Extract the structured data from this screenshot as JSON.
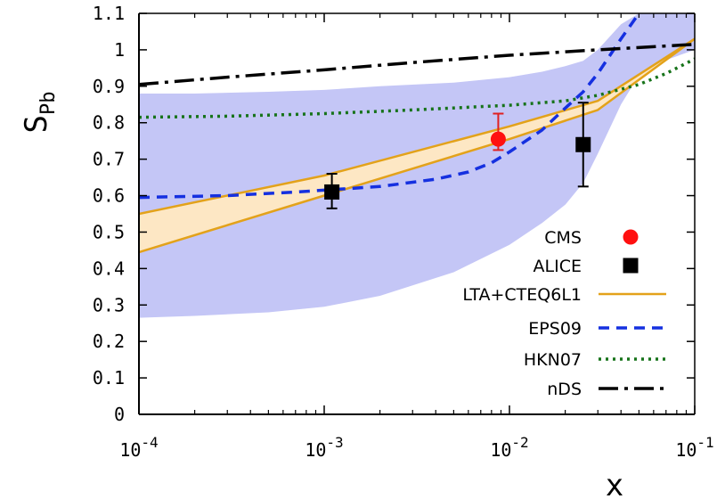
{
  "chart_data": {
    "type": "line",
    "title": "",
    "xlabel": "x",
    "ylabel": "S",
    "ylabel_subscript": "Pb",
    "x_scale": "log",
    "xlim": [
      0.0001,
      0.1
    ],
    "ylim": [
      0,
      1.1
    ],
    "x_ticks": [
      {
        "value": 0.0001,
        "base": "10",
        "exp": "-4"
      },
      {
        "value": 0.001,
        "base": "10",
        "exp": "-3"
      },
      {
        "value": 0.01,
        "base": "10",
        "exp": "-2"
      },
      {
        "value": 0.1,
        "base": "10",
        "exp": "-1"
      }
    ],
    "y_ticks": [
      {
        "value": 0,
        "label": "0"
      },
      {
        "value": 0.1,
        "label": "0.1"
      },
      {
        "value": 0.2,
        "label": "0.2"
      },
      {
        "value": 0.3,
        "label": "0.3"
      },
      {
        "value": 0.4,
        "label": "0.4"
      },
      {
        "value": 0.5,
        "label": "0.5"
      },
      {
        "value": 0.6,
        "label": "0.6"
      },
      {
        "value": 0.7,
        "label": "0.7"
      },
      {
        "value": 0.8,
        "label": "0.8"
      },
      {
        "value": 0.9,
        "label": "0.9"
      },
      {
        "value": 1,
        "label": "1"
      },
      {
        "value": 1.1,
        "label": "1.1"
      }
    ],
    "grid": false,
    "legend_position": "bottom-right",
    "bands": [
      {
        "name": "EPS09",
        "color": "#c4c6f6",
        "x": [
          0.0001,
          0.0002,
          0.0005,
          0.001,
          0.002,
          0.005,
          0.01,
          0.015,
          0.02,
          0.025,
          0.03,
          0.04,
          0.05,
          0.06,
          0.1
        ],
        "lower": [
          0.265,
          0.27,
          0.28,
          0.295,
          0.325,
          0.39,
          0.465,
          0.525,
          0.575,
          0.635,
          0.715,
          0.85,
          0.93,
          0.96,
          1.0
        ],
        "upper": [
          0.88,
          0.88,
          0.885,
          0.89,
          0.9,
          0.91,
          0.925,
          0.94,
          0.955,
          0.97,
          1.0,
          1.07,
          1.1,
          1.1,
          1.1
        ]
      },
      {
        "name": "LTA+CTEQ6L1",
        "color": "#fde7c4",
        "x": [
          0.0001,
          0.001,
          0.01,
          0.03,
          0.1
        ],
        "lower": [
          0.445,
          0.6,
          0.755,
          0.835,
          1.03
        ],
        "upper": [
          0.55,
          0.655,
          0.79,
          0.86,
          1.03
        ]
      }
    ],
    "series": [
      {
        "name": "LTA+CTEQ6L1",
        "kind": "line",
        "color": "#e3a21a",
        "dash": "",
        "width": 2.5,
        "x": [
          0.0001,
          0.001,
          0.01,
          0.03,
          0.1
        ],
        "y": [
          0.445,
          0.6,
          0.755,
          0.835,
          1.03
        ]
      },
      {
        "name": "",
        "kind": "line",
        "color": "#e3a21a",
        "dash": "",
        "width": 2.5,
        "x": [
          0.0001,
          0.001,
          0.01,
          0.03,
          0.1
        ],
        "y": [
          0.55,
          0.655,
          0.79,
          0.86,
          1.03
        ]
      },
      {
        "name": "EPS09",
        "kind": "line",
        "color": "#1530e0",
        "dash": "12,8",
        "width": 3.5,
        "x": [
          0.0001,
          0.0003,
          0.0007,
          0.001,
          0.002,
          0.004,
          0.006,
          0.008,
          0.01,
          0.015,
          0.02,
          0.025,
          0.03,
          0.04,
          0.05,
          0.055
        ],
        "y": [
          0.595,
          0.6,
          0.61,
          0.615,
          0.625,
          0.645,
          0.665,
          0.69,
          0.72,
          0.78,
          0.84,
          0.885,
          0.935,
          1.03,
          1.1,
          1.13
        ]
      },
      {
        "name": "HKN07",
        "kind": "line",
        "color": "#17731a",
        "dash": "3,5",
        "width": 3.5,
        "x": [
          0.0001,
          0.0003,
          0.001,
          0.003,
          0.01,
          0.02,
          0.03,
          0.05,
          0.07,
          0.1
        ],
        "y": [
          0.815,
          0.818,
          0.825,
          0.835,
          0.848,
          0.86,
          0.875,
          0.905,
          0.935,
          0.975
        ]
      },
      {
        "name": "nDS",
        "kind": "line",
        "color": "#000000",
        "dash": "22,7,4,7",
        "width": 3.5,
        "x": [
          0.0001,
          0.0003,
          0.001,
          0.003,
          0.01,
          0.03,
          0.1
        ],
        "y": [
          0.905,
          0.925,
          0.945,
          0.965,
          0.985,
          1.0,
          1.015
        ]
      },
      {
        "name": "CMS",
        "kind": "points",
        "marker": "circle",
        "color": "#ff1010",
        "err_color": "#e02020",
        "x": [
          0.0087
        ],
        "y": [
          0.755
        ],
        "yerr_low": [
          0.725
        ],
        "yerr_high": [
          0.825
        ]
      },
      {
        "name": "ALICE",
        "kind": "points",
        "marker": "square",
        "color": "#000000",
        "err_color": "#000000",
        "x": [
          0.0011,
          0.025
        ],
        "y": [
          0.61,
          0.74
        ],
        "yerr_low": [
          0.565,
          0.625
        ],
        "yerr_high": [
          0.66,
          0.855
        ]
      }
    ],
    "legend": [
      {
        "label": "CMS",
        "kind": "circle",
        "color": "#ff1010"
      },
      {
        "label": "ALICE",
        "kind": "square",
        "color": "#000000"
      },
      {
        "label": "LTA+CTEQ6L1",
        "kind": "line",
        "color": "#e3a21a",
        "dash": "",
        "width": 2.5
      },
      {
        "label": "EPS09",
        "kind": "line",
        "color": "#1530e0",
        "dash": "12,8",
        "width": 3.5
      },
      {
        "label": "HKN07",
        "kind": "line",
        "color": "#17731a",
        "dash": "3,5",
        "width": 3.5
      },
      {
        "label": "nDS",
        "kind": "line",
        "color": "#000000",
        "dash": "22,7,4,7",
        "width": 3.5
      }
    ]
  }
}
